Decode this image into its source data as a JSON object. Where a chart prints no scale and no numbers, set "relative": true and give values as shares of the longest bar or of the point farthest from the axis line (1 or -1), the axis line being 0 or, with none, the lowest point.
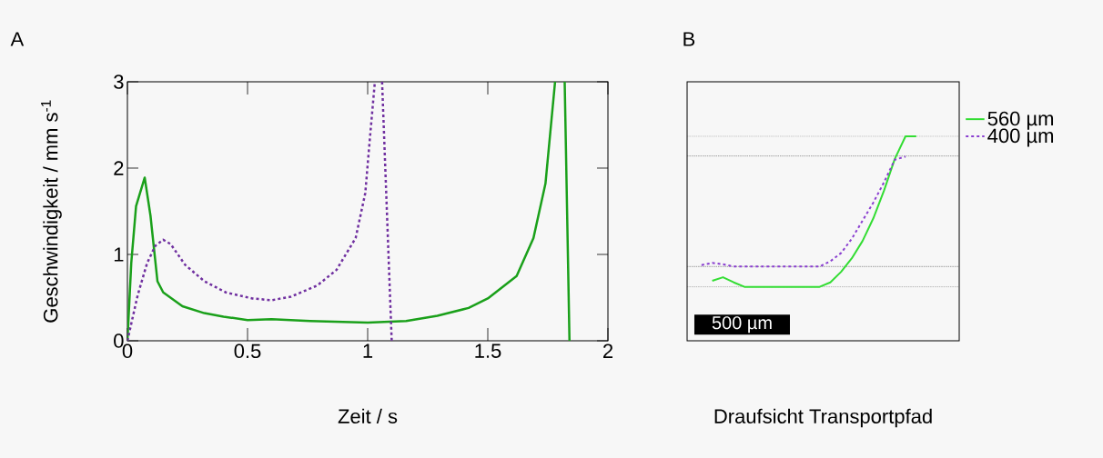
{
  "chart_data": [
    {
      "type": "line",
      "title": "A",
      "xlabel": "Zeit / s",
      "ylabel": "Geschwindigkeit / mm s$^{-1}$",
      "xlim": [
        0,
        2
      ],
      "ylim": [
        0,
        3
      ],
      "xticks": [
        0,
        0.5,
        1,
        1.5,
        2
      ],
      "yticks": [
        0,
        1,
        2,
        3
      ],
      "series": [
        {
          "color": "#1aa01a",
          "line_style": "solid",
          "x": [
            0,
            0.016,
            0.036,
            0.072,
            0.096,
            0.125,
            0.149,
            0.229,
            0.32,
            0.4,
            0.5,
            0.6,
            0.76,
            1.0,
            1.16,
            1.29,
            1.42,
            1.5,
            1.62,
            1.69,
            1.74,
            1.78,
            1.8,
            1.82,
            1.84
          ],
          "values": [
            0,
            0.9,
            1.56,
            1.89,
            1.45,
            0.69,
            0.56,
            0.4,
            0.32,
            0.28,
            0.24,
            0.25,
            0.23,
            0.21,
            0.23,
            0.29,
            0.38,
            0.49,
            0.75,
            1.19,
            1.82,
            3.0,
            null,
            3.0,
            0
          ]
        },
        {
          "color": "#7030a0",
          "line_style": "dashed",
          "x": [
            0,
            0.043,
            0.082,
            0.116,
            0.149,
            0.18,
            0.24,
            0.32,
            0.41,
            0.52,
            0.6,
            0.68,
            0.79,
            0.87,
            0.95,
            0.99,
            1.01,
            1.03,
            1.045,
            1.06,
            1.1
          ],
          "values": [
            0,
            0.53,
            0.9,
            1.1,
            1.17,
            1.12,
            0.88,
            0.69,
            0.56,
            0.49,
            0.47,
            0.51,
            0.64,
            0.82,
            1.19,
            1.71,
            2.37,
            3.0,
            null,
            3.0,
            0
          ]
        }
      ]
    },
    {
      "type": "line",
      "title": "B",
      "xlabel": "Draufsicht Transportpfad",
      "relative": true,
      "legend": "right",
      "categories": [
        null,
        null,
        null,
        null,
        null,
        null,
        null,
        null,
        null,
        null,
        null,
        null,
        null,
        null,
        null,
        null,
        null,
        null,
        null,
        null,
        null
      ],
      "annotations": [
        "500 µm"
      ],
      "ref_lines": [
        {
          "axis": "y",
          "value": 1,
          "color": "#333333",
          "line_style": "dotted"
        },
        {
          "axis": "y",
          "value": 0.869,
          "color": "#333333",
          "line_style": "dotted"
        },
        {
          "axis": "y",
          "value": 0.135,
          "color": "#333333",
          "line_style": "dotted"
        },
        {
          "axis": "y",
          "value": 0,
          "color": "#333333",
          "line_style": "dotted"
        }
      ],
      "series": [
        {
          "name": "560 µm",
          "color": "#33dd33",
          "line_style": "solid",
          "values": [
            null,
            0.04,
            0.064,
            0.03,
            0,
            0,
            0,
            0,
            0,
            0,
            0,
            0,
            0.03,
            0.1,
            0.19,
            0.305,
            0.455,
            0.64,
            0.85,
            1,
            1
          ]
        },
        {
          "name": "400 µm",
          "color": "#8a3fd0",
          "line_style": "dashed",
          "values": [
            0.145,
            0.159,
            0.15,
            0.135,
            0.135,
            0.135,
            0.135,
            0.135,
            0.135,
            0.135,
            0.135,
            0.135,
            0.17,
            0.225,
            0.32,
            0.44,
            0.56,
            0.695,
            0.845,
            0.865,
            null
          ]
        }
      ]
    }
  ]
}
